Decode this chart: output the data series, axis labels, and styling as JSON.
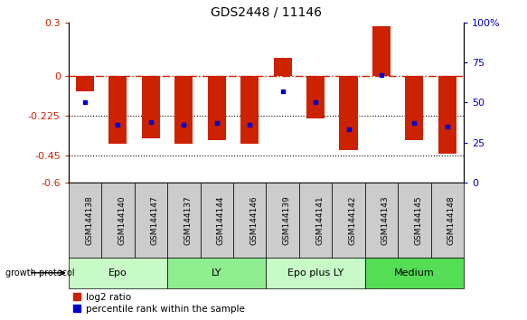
{
  "title": "GDS2448 / 11146",
  "samples": [
    "GSM144138",
    "GSM144140",
    "GSM144147",
    "GSM144137",
    "GSM144144",
    "GSM144146",
    "GSM144139",
    "GSM144141",
    "GSM144142",
    "GSM144143",
    "GSM144145",
    "GSM144148"
  ],
  "log2_ratio": [
    -0.09,
    -0.38,
    -0.35,
    -0.38,
    -0.36,
    -0.38,
    0.1,
    -0.24,
    -0.42,
    0.28,
    -0.36,
    -0.44
  ],
  "percentile_rank": [
    50,
    36,
    38,
    36,
    37,
    36,
    57,
    50,
    33,
    67,
    37,
    35
  ],
  "groups": [
    {
      "label": "Epo",
      "start": 0,
      "end": 3,
      "color": "#c8fac8"
    },
    {
      "label": "LY",
      "start": 3,
      "end": 6,
      "color": "#90ee90"
    },
    {
      "label": "Epo plus LY",
      "start": 6,
      "end": 9,
      "color": "#c8fac8"
    },
    {
      "label": "Medium",
      "start": 9,
      "end": 12,
      "color": "#55dd55"
    }
  ],
  "bar_color": "#cc2200",
  "dot_color": "#0000cc",
  "ylim": [
    -0.6,
    0.3
  ],
  "y2lim": [
    0,
    100
  ],
  "yticks_left": [
    -0.6,
    -0.45,
    -0.225,
    0.0,
    0.3
  ],
  "yticks_right": [
    0,
    25,
    50,
    75,
    100
  ],
  "hline_y": 0.0,
  "dotted_lines": [
    -0.225,
    -0.45
  ],
  "bar_width": 0.55,
  "sample_box_color": "#cccccc",
  "growth_protocol_label": "growth protocol"
}
